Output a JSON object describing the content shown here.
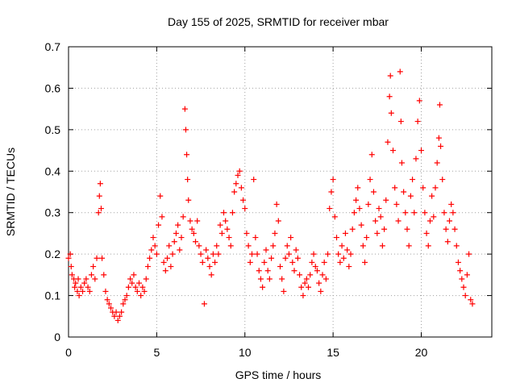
{
  "chart_data": {
    "type": "scatter",
    "title": "Day 155 of 2025, SRMTID for receiver mbar",
    "xlabel": "GPS time / hours",
    "ylabel": "SRMTID / TECUs",
    "xlim": [
      0,
      24
    ],
    "ylim": [
      0,
      0.7
    ],
    "xticks": [
      0,
      5,
      10,
      15,
      20
    ],
    "yticks": [
      0,
      0.1,
      0.2,
      0.3,
      0.4,
      0.5,
      0.6,
      0.7
    ],
    "xtick_labels": [
      "0",
      "5",
      "10",
      "15",
      "20"
    ],
    "ytick_labels": [
      "0",
      "0.1",
      "0.2",
      "0.3",
      "0.4",
      "0.5",
      "0.6",
      "0.7"
    ],
    "grid": true,
    "marker": "+",
    "color": "#ff0000",
    "series": [
      {
        "name": "SRMTID",
        "points": [
          [
            0.0,
            0.19
          ],
          [
            0.1,
            0.2
          ],
          [
            0.15,
            0.17
          ],
          [
            0.2,
            0.15
          ],
          [
            0.3,
            0.14
          ],
          [
            0.35,
            0.12
          ],
          [
            0.4,
            0.13
          ],
          [
            0.5,
            0.11
          ],
          [
            0.55,
            0.14
          ],
          [
            0.6,
            0.1
          ],
          [
            0.7,
            0.12
          ],
          [
            0.8,
            0.11
          ],
          [
            0.9,
            0.13
          ],
          [
            1.0,
            0.14
          ],
          [
            1.1,
            0.12
          ],
          [
            1.2,
            0.11
          ],
          [
            1.3,
            0.15
          ],
          [
            1.4,
            0.17
          ],
          [
            1.5,
            0.14
          ],
          [
            1.6,
            0.19
          ],
          [
            1.7,
            0.3
          ],
          [
            1.75,
            0.34
          ],
          [
            1.8,
            0.37
          ],
          [
            1.85,
            0.31
          ],
          [
            1.9,
            0.19
          ],
          [
            2.0,
            0.15
          ],
          [
            2.1,
            0.11
          ],
          [
            2.2,
            0.09
          ],
          [
            2.3,
            0.08
          ],
          [
            2.4,
            0.07
          ],
          [
            2.5,
            0.06
          ],
          [
            2.6,
            0.05
          ],
          [
            2.7,
            0.06
          ],
          [
            2.8,
            0.04
          ],
          [
            2.9,
            0.05
          ],
          [
            3.0,
            0.06
          ],
          [
            3.1,
            0.08
          ],
          [
            3.2,
            0.09
          ],
          [
            3.3,
            0.1
          ],
          [
            3.4,
            0.12
          ],
          [
            3.5,
            0.14
          ],
          [
            3.6,
            0.13
          ],
          [
            3.7,
            0.15
          ],
          [
            3.8,
            0.12
          ],
          [
            3.9,
            0.11
          ],
          [
            4.0,
            0.13
          ],
          [
            4.1,
            0.1
          ],
          [
            4.2,
            0.12
          ],
          [
            4.3,
            0.11
          ],
          [
            4.4,
            0.14
          ],
          [
            4.5,
            0.17
          ],
          [
            4.6,
            0.19
          ],
          [
            4.7,
            0.21
          ],
          [
            4.8,
            0.24
          ],
          [
            4.9,
            0.22
          ],
          [
            5.0,
            0.2
          ],
          [
            5.1,
            0.27
          ],
          [
            5.2,
            0.34
          ],
          [
            5.3,
            0.29
          ],
          [
            5.4,
            0.18
          ],
          [
            5.5,
            0.16
          ],
          [
            5.6,
            0.19
          ],
          [
            5.7,
            0.22
          ],
          [
            5.8,
            0.17
          ],
          [
            5.9,
            0.2
          ],
          [
            6.0,
            0.23
          ],
          [
            6.1,
            0.25
          ],
          [
            6.2,
            0.27
          ],
          [
            6.3,
            0.21
          ],
          [
            6.4,
            0.24
          ],
          [
            6.5,
            0.29
          ],
          [
            6.6,
            0.55
          ],
          [
            6.65,
            0.5
          ],
          [
            6.7,
            0.44
          ],
          [
            6.75,
            0.38
          ],
          [
            6.8,
            0.33
          ],
          [
            6.9,
            0.28
          ],
          [
            7.0,
            0.26
          ],
          [
            7.1,
            0.25
          ],
          [
            7.2,
            0.23
          ],
          [
            7.3,
            0.28
          ],
          [
            7.4,
            0.22
          ],
          [
            7.5,
            0.2
          ],
          [
            7.6,
            0.18
          ],
          [
            7.7,
            0.08
          ],
          [
            7.8,
            0.21
          ],
          [
            7.9,
            0.19
          ],
          [
            8.0,
            0.17
          ],
          [
            8.1,
            0.15
          ],
          [
            8.2,
            0.2
          ],
          [
            8.3,
            0.18
          ],
          [
            8.4,
            0.22
          ],
          [
            8.5,
            0.2
          ],
          [
            8.6,
            0.27
          ],
          [
            8.7,
            0.25
          ],
          [
            8.8,
            0.3
          ],
          [
            8.9,
            0.28
          ],
          [
            9.0,
            0.26
          ],
          [
            9.1,
            0.24
          ],
          [
            9.2,
            0.22
          ],
          [
            9.3,
            0.3
          ],
          [
            9.4,
            0.35
          ],
          [
            9.5,
            0.37
          ],
          [
            9.6,
            0.39
          ],
          [
            9.7,
            0.4
          ],
          [
            9.8,
            0.36
          ],
          [
            9.9,
            0.33
          ],
          [
            10.0,
            0.31
          ],
          [
            10.1,
            0.25
          ],
          [
            10.2,
            0.22
          ],
          [
            10.3,
            0.18
          ],
          [
            10.4,
            0.2
          ],
          [
            10.5,
            0.38
          ],
          [
            10.6,
            0.24
          ],
          [
            10.7,
            0.2
          ],
          [
            10.8,
            0.16
          ],
          [
            10.9,
            0.14
          ],
          [
            11.0,
            0.12
          ],
          [
            11.1,
            0.18
          ],
          [
            11.2,
            0.21
          ],
          [
            11.3,
            0.16
          ],
          [
            11.4,
            0.14
          ],
          [
            11.5,
            0.19
          ],
          [
            11.6,
            0.22
          ],
          [
            11.7,
            0.25
          ],
          [
            11.8,
            0.32
          ],
          [
            11.9,
            0.28
          ],
          [
            12.0,
            0.17
          ],
          [
            12.1,
            0.14
          ],
          [
            12.2,
            0.11
          ],
          [
            12.3,
            0.19
          ],
          [
            12.4,
            0.22
          ],
          [
            12.5,
            0.2
          ],
          [
            12.6,
            0.24
          ],
          [
            12.7,
            0.18
          ],
          [
            12.8,
            0.16
          ],
          [
            12.9,
            0.21
          ],
          [
            13.0,
            0.19
          ],
          [
            13.1,
            0.15
          ],
          [
            13.2,
            0.12
          ],
          [
            13.3,
            0.1
          ],
          [
            13.4,
            0.13
          ],
          [
            13.5,
            0.14
          ],
          [
            13.6,
            0.12
          ],
          [
            13.7,
            0.15
          ],
          [
            13.8,
            0.18
          ],
          [
            13.9,
            0.2
          ],
          [
            14.0,
            0.17
          ],
          [
            14.1,
            0.16
          ],
          [
            14.2,
            0.13
          ],
          [
            14.3,
            0.11
          ],
          [
            14.4,
            0.15
          ],
          [
            14.5,
            0.18
          ],
          [
            14.6,
            0.14
          ],
          [
            14.7,
            0.2
          ],
          [
            14.8,
            0.31
          ],
          [
            14.9,
            0.35
          ],
          [
            15.0,
            0.38
          ],
          [
            15.1,
            0.29
          ],
          [
            15.2,
            0.24
          ],
          [
            15.3,
            0.2
          ],
          [
            15.4,
            0.18
          ],
          [
            15.5,
            0.22
          ],
          [
            15.6,
            0.19
          ],
          [
            15.7,
            0.25
          ],
          [
            15.8,
            0.21
          ],
          [
            15.9,
            0.17
          ],
          [
            16.0,
            0.2
          ],
          [
            16.1,
            0.26
          ],
          [
            16.2,
            0.3
          ],
          [
            16.3,
            0.33
          ],
          [
            16.4,
            0.36
          ],
          [
            16.5,
            0.31
          ],
          [
            16.6,
            0.27
          ],
          [
            16.7,
            0.22
          ],
          [
            16.8,
            0.18
          ],
          [
            16.9,
            0.24
          ],
          [
            17.0,
            0.32
          ],
          [
            17.1,
            0.38
          ],
          [
            17.2,
            0.44
          ],
          [
            17.3,
            0.35
          ],
          [
            17.4,
            0.28
          ],
          [
            17.5,
            0.25
          ],
          [
            17.6,
            0.31
          ],
          [
            17.7,
            0.29
          ],
          [
            17.8,
            0.22
          ],
          [
            17.9,
            0.26
          ],
          [
            18.0,
            0.33
          ],
          [
            18.1,
            0.47
          ],
          [
            18.2,
            0.58
          ],
          [
            18.25,
            0.63
          ],
          [
            18.3,
            0.54
          ],
          [
            18.4,
            0.45
          ],
          [
            18.5,
            0.36
          ],
          [
            18.6,
            0.32
          ],
          [
            18.7,
            0.28
          ],
          [
            18.8,
            0.64
          ],
          [
            18.85,
            0.52
          ],
          [
            18.9,
            0.42
          ],
          [
            19.0,
            0.35
          ],
          [
            19.1,
            0.3
          ],
          [
            19.2,
            0.26
          ],
          [
            19.3,
            0.22
          ],
          [
            19.4,
            0.34
          ],
          [
            19.5,
            0.38
          ],
          [
            19.6,
            0.3
          ],
          [
            19.7,
            0.43
          ],
          [
            19.8,
            0.52
          ],
          [
            19.9,
            0.57
          ],
          [
            20.0,
            0.45
          ],
          [
            20.1,
            0.36
          ],
          [
            20.2,
            0.3
          ],
          [
            20.3,
            0.25
          ],
          [
            20.4,
            0.22
          ],
          [
            20.5,
            0.28
          ],
          [
            20.6,
            0.34
          ],
          [
            20.7,
            0.29
          ],
          [
            20.8,
            0.36
          ],
          [
            20.9,
            0.42
          ],
          [
            21.0,
            0.48
          ],
          [
            21.05,
            0.56
          ],
          [
            21.1,
            0.46
          ],
          [
            21.2,
            0.38
          ],
          [
            21.3,
            0.3
          ],
          [
            21.4,
            0.26
          ],
          [
            21.5,
            0.23
          ],
          [
            21.6,
            0.28
          ],
          [
            21.7,
            0.32
          ],
          [
            21.8,
            0.3
          ],
          [
            21.9,
            0.26
          ],
          [
            22.0,
            0.22
          ],
          [
            22.1,
            0.18
          ],
          [
            22.2,
            0.16
          ],
          [
            22.3,
            0.14
          ],
          [
            22.4,
            0.12
          ],
          [
            22.5,
            0.1
          ],
          [
            22.6,
            0.15
          ],
          [
            22.7,
            0.2
          ],
          [
            22.8,
            0.09
          ],
          [
            22.9,
            0.08
          ]
        ]
      }
    ]
  }
}
